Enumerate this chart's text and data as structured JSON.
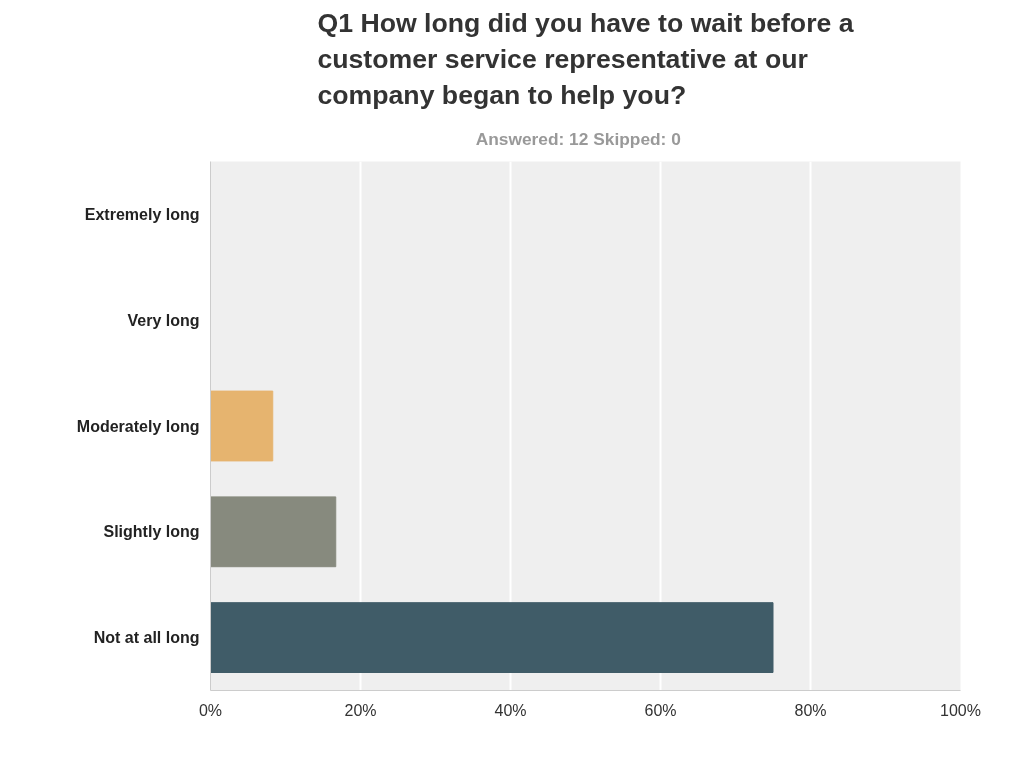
{
  "chart_data": {
    "type": "bar",
    "orientation": "horizontal",
    "title": "Q1 How long did you have to wait before a\ncustomer service representative at our\ncompany began to help you?",
    "subtitle": "Answered: 12    Skipped: 0",
    "categories": [
      "Extremely long",
      "Very long",
      "Moderately long",
      "Slightly long",
      "Not at all long"
    ],
    "values": [
      0,
      0,
      8.3,
      16.7,
      75
    ],
    "colors": [
      "#4f7391",
      "#c9d37f",
      "#e6b46f",
      "#878a7e",
      "#405c68"
    ],
    "xlim": [
      0,
      100
    ],
    "xticks": [
      {
        "value": 0,
        "label": "0%"
      },
      {
        "value": 20,
        "label": "20%"
      },
      {
        "value": 40,
        "label": "40%"
      },
      {
        "value": 60,
        "label": "60%"
      },
      {
        "value": 80,
        "label": "80%"
      },
      {
        "value": 100,
        "label": "100%"
      }
    ],
    "grid": "x",
    "legend": false
  }
}
